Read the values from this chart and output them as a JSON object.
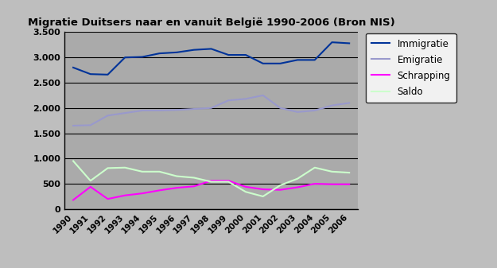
{
  "title": "Migratie Duitsers naar en vanuit België 1990-2006 (Bron NIS)",
  "years": [
    1990,
    1991,
    1992,
    1993,
    1994,
    1995,
    1996,
    1997,
    1998,
    1999,
    2000,
    2001,
    2002,
    2003,
    2004,
    2005,
    2006
  ],
  "immigratie": [
    2800,
    2670,
    2660,
    3000,
    3010,
    3080,
    3100,
    3150,
    3170,
    3050,
    3050,
    2880,
    2880,
    2950,
    2950,
    3300,
    3280
  ],
  "emigratie": [
    1650,
    1660,
    1850,
    1900,
    1950,
    1950,
    1960,
    1980,
    2000,
    2150,
    2180,
    2250,
    2000,
    1920,
    1950,
    2050,
    2100
  ],
  "schrapping": [
    180,
    440,
    200,
    270,
    310,
    370,
    420,
    450,
    560,
    560,
    440,
    390,
    380,
    430,
    500,
    490,
    490
  ],
  "saldo": [
    950,
    560,
    810,
    820,
    740,
    740,
    650,
    620,
    540,
    540,
    340,
    250,
    470,
    600,
    820,
    740,
    720
  ],
  "immigratie_color": "#003399",
  "emigratie_color": "#9999CC",
  "schrapping_color": "#FF00FF",
  "saldo_color": "#CCFFCC",
  "fig_bg_color": "#BEBEBE",
  "plot_bg_color": "#AAAAAA",
  "ylim": [
    0,
    3500
  ],
  "yticks": [
    0,
    500,
    1000,
    1500,
    2000,
    2500,
    3000,
    3500
  ],
  "ytick_labels": [
    "0",
    "500",
    "1.000",
    "1.500",
    "2.000",
    "2.500",
    "3.000",
    "3.500"
  ],
  "legend_labels": [
    "Immigratie",
    "Emigratie",
    "Schrapping",
    "Saldo"
  ]
}
